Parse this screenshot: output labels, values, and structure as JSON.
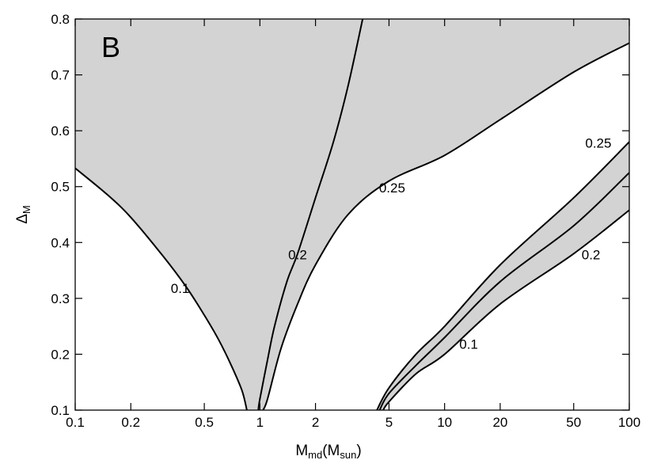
{
  "chart_data": {
    "type": "area",
    "panel_label": "B",
    "xlabel": {
      "main": "M",
      "sub": "md",
      "mid": "(M",
      "sub2": "sun",
      "end": ")"
    },
    "ylabel": {
      "main": "Δ",
      "sub": "M"
    },
    "x_scale": "log",
    "xlim": [
      0.1,
      100
    ],
    "ylim": [
      0.1,
      0.8
    ],
    "x_ticks": [
      0.1,
      0.2,
      0.5,
      1,
      2,
      5,
      10,
      20,
      50,
      100
    ],
    "x_tick_labels": [
      "0.1",
      "0.2",
      "0.5",
      "1",
      "2",
      "5",
      "10",
      "20",
      "50",
      "100"
    ],
    "y_ticks": [
      0.1,
      0.2,
      0.3,
      0.4,
      0.5,
      0.6,
      0.7,
      0.8
    ],
    "y_tick_labels": [
      "0.1",
      "0.2",
      "0.3",
      "0.4",
      "0.5",
      "0.6",
      "0.7",
      "0.8"
    ],
    "grid": false,
    "fill_color": "#d3d3d3",
    "line_color": "#000000",
    "series": [
      {
        "label": "0.1",
        "group": "upper",
        "x": [
          0.1,
          0.15,
          0.2,
          0.3,
          0.4,
          0.5,
          0.6,
          0.7,
          0.8,
          0.85
        ],
        "y": [
          0.533,
          0.485,
          0.445,
          0.375,
          0.32,
          0.27,
          0.225,
          0.18,
          0.135,
          0.1
        ]
      },
      {
        "label": "0.2",
        "group": "upper",
        "x": [
          0.98,
          1.0,
          1.1,
          1.2,
          1.4,
          1.6,
          2.0,
          2.5,
          3.0,
          3.6
        ],
        "y": [
          0.1,
          0.12,
          0.19,
          0.25,
          0.33,
          0.38,
          0.48,
          0.58,
          0.68,
          0.8
        ]
      },
      {
        "label": "0.25",
        "group": "upper",
        "x": [
          1.04,
          1.1,
          1.3,
          1.6,
          2.0,
          3.0,
          5.0,
          10,
          20,
          50,
          100
        ],
        "y": [
          0.1,
          0.12,
          0.21,
          0.29,
          0.36,
          0.45,
          0.51,
          0.556,
          0.62,
          0.705,
          0.757
        ]
      },
      {
        "label": "0.25",
        "group": "lower",
        "x": [
          4.3,
          5.0,
          7.0,
          10,
          20,
          50,
          100
        ],
        "y": [
          0.1,
          0.14,
          0.2,
          0.25,
          0.36,
          0.48,
          0.58
        ]
      },
      {
        "label": "0.2",
        "group": "lower",
        "x": [
          4.45,
          5.0,
          7.0,
          10,
          20,
          50,
          100
        ],
        "y": [
          0.1,
          0.13,
          0.18,
          0.23,
          0.33,
          0.43,
          0.525
        ]
      },
      {
        "label": "0.1",
        "group": "lower",
        "x": [
          4.65,
          5.0,
          7.0,
          10,
          20,
          50,
          100
        ],
        "y": [
          0.1,
          0.115,
          0.165,
          0.2,
          0.29,
          0.38,
          0.458
        ]
      }
    ],
    "annotations": [
      {
        "text": "0.1",
        "x": 0.37,
        "y": 0.31
      },
      {
        "text": "0.2",
        "x": 1.6,
        "y": 0.37
      },
      {
        "text": "0.25",
        "x": 5.2,
        "y": 0.49
      },
      {
        "text": "0.25",
        "x": 68,
        "y": 0.57
      },
      {
        "text": "0.2",
        "x": 62,
        "y": 0.37
      },
      {
        "text": "0.1",
        "x": 13.5,
        "y": 0.21
      }
    ]
  }
}
